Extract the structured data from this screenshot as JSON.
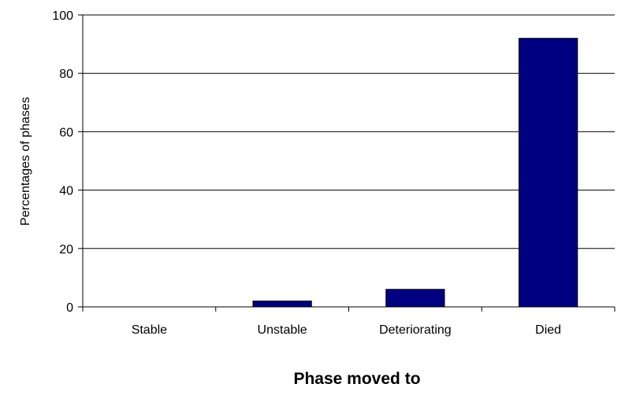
{
  "chart_data": {
    "type": "bar",
    "categories": [
      "Stable",
      "Unstable",
      "Deteriorating",
      "Died"
    ],
    "values": [
      0,
      2,
      6,
      92
    ],
    "title": "",
    "xlabel": "Phase moved to",
    "ylabel": "Percentages of phases",
    "ylim": [
      0,
      100
    ],
    "yticks": [
      0,
      20,
      40,
      60,
      80,
      100
    ],
    "grid": true,
    "legend": "none",
    "bar_color": "#000080"
  }
}
